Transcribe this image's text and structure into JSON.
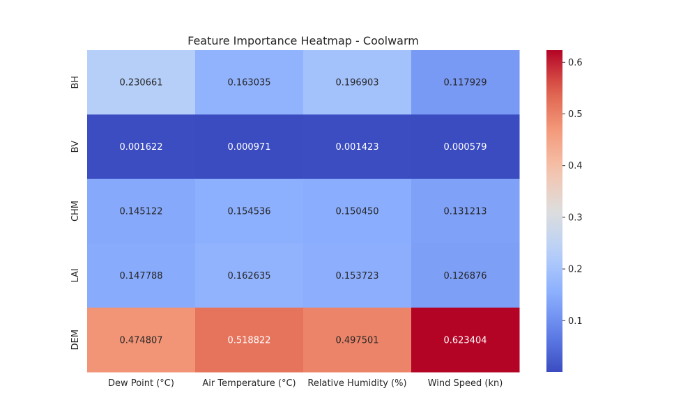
{
  "chart_data": {
    "type": "heatmap",
    "title": "Feature Importance Heatmap - Coolwarm",
    "colormap": "coolwarm",
    "columns": [
      "Dew Point (°C)",
      "Air Temperature (°C)",
      "Relative Humidity (%)",
      "Wind Speed (kn)"
    ],
    "rows": [
      "BH",
      "BV",
      "CHM",
      "LAI",
      "DEM"
    ],
    "values": [
      [
        0.230661,
        0.163035,
        0.196903,
        0.117929
      ],
      [
        0.001622,
        0.000971,
        0.001423,
        0.000579
      ],
      [
        0.145122,
        0.154536,
        0.15045,
        0.131213
      ],
      [
        0.147788,
        0.162635,
        0.153723,
        0.126876
      ],
      [
        0.474807,
        0.518822,
        0.497501,
        0.623404
      ]
    ],
    "value_labels": [
      [
        "0.230661",
        "0.163035",
        "0.196903",
        "0.117929"
      ],
      [
        "0.001622",
        "0.000971",
        "0.001423",
        "0.000579"
      ],
      [
        "0.145122",
        "0.154536",
        "0.150450",
        "0.131213"
      ],
      [
        "0.147788",
        "0.162635",
        "0.153723",
        "0.126876"
      ],
      [
        "0.474807",
        "0.518822",
        "0.497501",
        "0.623404"
      ]
    ],
    "colorbar": {
      "min": 0.000579,
      "max": 0.623404,
      "ticks": [
        0.1,
        0.2,
        0.3,
        0.4,
        0.5,
        0.6
      ],
      "tick_labels": [
        "0.1",
        "0.2",
        "0.3",
        "0.4",
        "0.5",
        "0.6"
      ]
    },
    "grid": false
  }
}
